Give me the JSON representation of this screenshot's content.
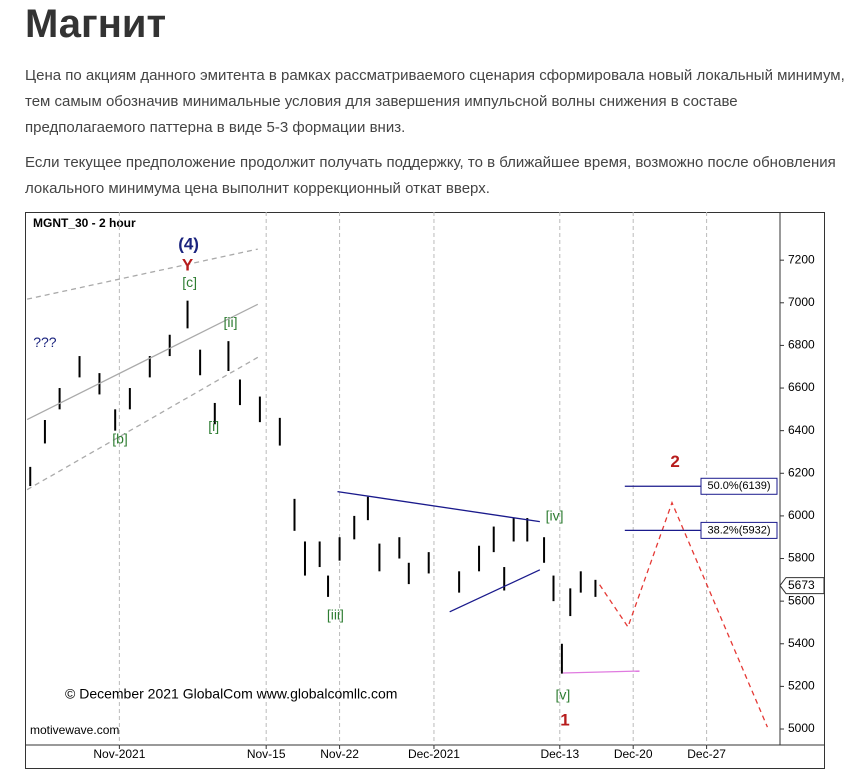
{
  "header": {
    "title": "Магнит"
  },
  "paragraphs": [
    "Цена по акциям данного эмитента в рамках рассматриваемого сценария сформировала новый локальный минимум, тем самым обозначив минимальные условия для завершения импульсной волны снижения в составе предполагаемого паттерна в виде 5-3 формации вниз.",
    "Если текущее предположение продолжит получать поддержку, то в ближайшее время, возможно после обновления локального минимума цена выполнит коррекционный откат вверх."
  ],
  "chart_data": {
    "type": "ohlc",
    "title": "MGNT_30 - 2 hour",
    "color": "#000000",
    "x": [
      -8.5,
      -7.1,
      -5.7,
      -3.8,
      -1.9,
      -0.4,
      1.0,
      2.9,
      4.8,
      6.5,
      7.7,
      9.1,
      10.4,
      11.5,
      13.4,
      15.3,
      16.7,
      17.7,
      19.1,
      19.9,
      21.0,
      22.4,
      23.7,
      24.8,
      26.7,
      27.6,
      29.5,
      32.4,
      34.3,
      35.7,
      36.7,
      37.6,
      38.9,
      40.5,
      41.4,
      42.2,
      43.0,
      44.0,
      45.4
    ],
    "high": [
      6230,
      6450,
      6600,
      6750,
      6670,
      6500,
      6600,
      6750,
      6850,
      7010,
      6780,
      6530,
      6820,
      6640,
      6560,
      6460,
      6080,
      5880,
      5880,
      5720,
      5900,
      6000,
      6090,
      5870,
      5900,
      5780,
      5830,
      5740,
      5860,
      5950,
      5760,
      5990,
      5990,
      5900,
      5720,
      5400,
      5660,
      5740,
      5700
    ],
    "low": [
      6140,
      6340,
      6500,
      6650,
      6570,
      6400,
      6500,
      6650,
      6750,
      6880,
      6660,
      6430,
      6680,
      6520,
      6440,
      6330,
      5930,
      5720,
      5760,
      5620,
      5790,
      5890,
      5980,
      5740,
      5800,
      5680,
      5730,
      5640,
      5740,
      5830,
      5650,
      5880,
      5880,
      5780,
      5600,
      5260,
      5530,
      5640,
      5620
    ],
    "xlim": [
      -9,
      63
    ],
    "ylim": [
      4925,
      7426
    ],
    "xticks": [
      {
        "value": 0,
        "label": "Nov-2021"
      },
      {
        "value": 14,
        "label": "Nov-15"
      },
      {
        "value": 21,
        "label": "Nov-22"
      },
      {
        "value": 30,
        "label": "Dec-2021"
      },
      {
        "value": 42,
        "label": "Dec-13"
      },
      {
        "value": 49,
        "label": "Dec-20"
      },
      {
        "value": 56,
        "label": "Dec-27"
      }
    ],
    "yticks": [
      5000,
      5200,
      5400,
      5600,
      5800,
      6000,
      6200,
      6400,
      6600,
      6800,
      7000,
      7200
    ],
    "grid": "x",
    "last_price": 5673,
    "annotations": [
      {
        "text": "(4)",
        "x": 6.6,
        "y": 7270,
        "color": "#1a237e",
        "kind": "major"
      },
      {
        "text": "Y",
        "x": 6.5,
        "y": 7172,
        "color": "#b71c1c",
        "kind": "major"
      },
      {
        "text": "[c]",
        "x": 6.7,
        "y": 7092,
        "color": "#2e7d32",
        "kind": "minor"
      },
      {
        "text": "[ii]",
        "x": 10.6,
        "y": 6904,
        "color": "#2e7d32",
        "kind": "minor"
      },
      {
        "text": "???",
        "x": -7.1,
        "y": 6810,
        "color": "#1a237e",
        "kind": "minor"
      },
      {
        "text": "[b]",
        "x": 0.06,
        "y": 6358,
        "color": "#2e7d32",
        "kind": "minor"
      },
      {
        "text": "[i]",
        "x": 9.0,
        "y": 6415,
        "color": "#2e7d32",
        "kind": "minor"
      },
      {
        "text": "[iii]",
        "x": 20.6,
        "y": 5531,
        "color": "#2e7d32",
        "kind": "minor"
      },
      {
        "text": "[iv]",
        "x": 41.5,
        "y": 5996,
        "color": "#2e7d32",
        "kind": "minor"
      },
      {
        "text": "[v]",
        "x": 42.3,
        "y": 5155,
        "color": "#2e7d32",
        "kind": "minor"
      },
      {
        "text": "1",
        "x": 42.5,
        "y": 5037,
        "color": "#b71c1c",
        "kind": "major"
      },
      {
        "text": "2",
        "x": 53.0,
        "y": 6250,
        "color": "#b71c1c",
        "kind": "major"
      }
    ],
    "lines": [
      {
        "x": [
          -8.8,
          13.2
        ],
        "y": [
          7017,
          7252
        ],
        "color": "#aaaaaa",
        "dash": true
      },
      {
        "x": [
          -8.8,
          13.2
        ],
        "y": [
          6452,
          6993
        ],
        "color": "#aaaaaa",
        "dash": false
      },
      {
        "x": [
          -8.8,
          13.2
        ],
        "y": [
          6123,
          6744
        ],
        "color": "#aaaaaa",
        "dash": true
      },
      {
        "x": [
          20.8,
          40.1
        ],
        "y": [
          6114,
          5973
        ],
        "color": "#1a1a8c",
        "dash": false
      },
      {
        "x": [
          31.5,
          40.1
        ],
        "y": [
          5550,
          5747
        ],
        "color": "#1a1a8c",
        "dash": false
      },
      {
        "x": [
          42.3,
          49.6
        ],
        "y": [
          5263,
          5272
        ],
        "color": "#e07be0",
        "dash": false
      },
      {
        "x": [
          45.8,
          48.5,
          52.7,
          61.8
        ],
        "y": [
          5677,
          5479,
          6062,
          5009
        ],
        "color": "#e53935",
        "dash": true
      }
    ],
    "fib_levels": [
      {
        "value": 6139,
        "label": "50.0%(6139)"
      },
      {
        "value": 5932,
        "label": "38.2%(5932)"
      }
    ],
    "fib_x": [
      48.2,
      62.5
    ],
    "credits": [
      "© December 2021 GlobalCom www.globalcomllc.com",
      "motivewave.com"
    ]
  }
}
